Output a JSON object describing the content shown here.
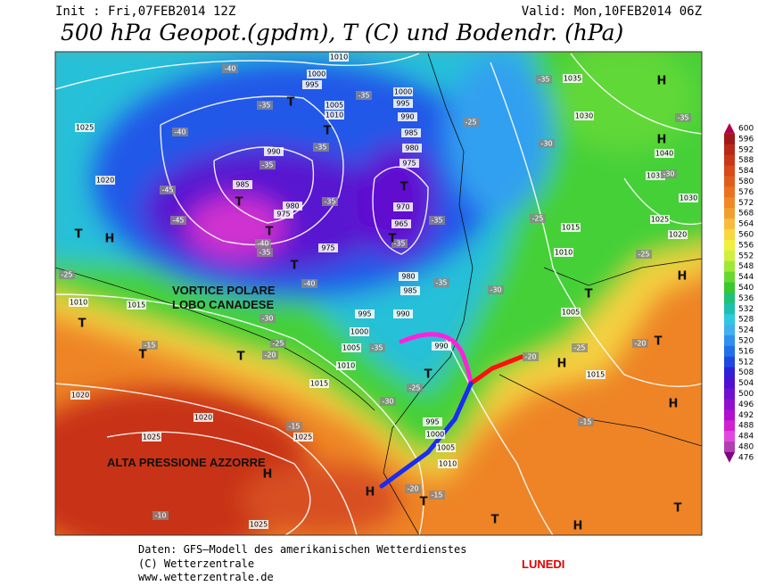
{
  "header": {
    "init": "Init : Fri,07FEB2014 12Z",
    "valid": "Valid: Mon,10FEB2014 06Z",
    "title": "500 hPa Geopot.(gpdm), T (C) und Bodendr. (hPa)"
  },
  "map": {
    "annotations": [
      "VORTICE POLARE",
      "LOBO CANADESE",
      "ALTA PRESSIONE AZZORRE"
    ],
    "pressure_labels": [
      "1010",
      "1000",
      "995",
      "1025",
      "1020",
      "1005",
      "1010",
      "990",
      "985",
      "980",
      "975",
      "975",
      "1000",
      "995",
      "990",
      "985",
      "980",
      "975",
      "970",
      "965",
      "980",
      "985",
      "990",
      "995",
      "1000",
      "1005",
      "1010",
      "1015",
      "990",
      "1015",
      "1010",
      "1020",
      "1020",
      "1025",
      "1025",
      "1025",
      "995",
      "1000",
      "1005",
      "1010",
      "1015",
      "1010",
      "1005",
      "1015",
      "1025",
      "1020",
      "1030",
      "1035",
      "1040",
      "1030",
      "1035"
    ],
    "temperature_labels": [
      "-40",
      "-35",
      "-35",
      "-40",
      "-35",
      "-35",
      "-45",
      "-45",
      "-40",
      "-35",
      "-35",
      "-35",
      "-35",
      "-40",
      "-35",
      "-30",
      "-25",
      "-25",
      "-20",
      "-35",
      "-30",
      "-25",
      "-30",
      "-25",
      "-30",
      "-35",
      "-35",
      "-30",
      "-25",
      "-20",
      "-25",
      "-20",
      "-15",
      "-15",
      "-15",
      "-15",
      "-10",
      "-20",
      "-25"
    ],
    "centers": [
      "H",
      "H",
      "T",
      "T",
      "T",
      "T",
      "T",
      "T",
      "T",
      "T",
      "H",
      "T",
      "T",
      "T",
      "T",
      "T",
      "H",
      "T",
      "H",
      "H",
      "H",
      "H",
      "T",
      "T",
      "T",
      "H"
    ]
  },
  "colorbar": {
    "values": [
      600,
      596,
      592,
      588,
      584,
      580,
      576,
      572,
      568,
      564,
      560,
      556,
      552,
      548,
      544,
      540,
      536,
      532,
      528,
      524,
      520,
      516,
      512,
      508,
      504,
      500,
      496,
      492,
      488,
      484,
      480,
      476
    ],
    "colors": [
      "#b0004a",
      "#a01818",
      "#b82818",
      "#c83818",
      "#d84a18",
      "#e05e1c",
      "#e87220",
      "#f08828",
      "#f0a030",
      "#f8bc3c",
      "#f8d840",
      "#f0f040",
      "#d0f040",
      "#a0e838",
      "#68d830",
      "#38c830",
      "#20c078",
      "#20c0b0",
      "#30c8e0",
      "#40b0f0",
      "#3090f0",
      "#2070e8",
      "#2048e0",
      "#3020d8",
      "#5010d0",
      "#7010d0",
      "#9010d0",
      "#b010d0",
      "#d020d0",
      "#e048e0",
      "#b040b0",
      "#800080"
    ]
  },
  "footer": {
    "source_lines": [
      "Daten: GFS–Modell des amerikanischen Wetterdienstes",
      "(C) Wetterzentrale",
      "www.wetterzentrale.de"
    ],
    "day": "LUNEDI"
  }
}
